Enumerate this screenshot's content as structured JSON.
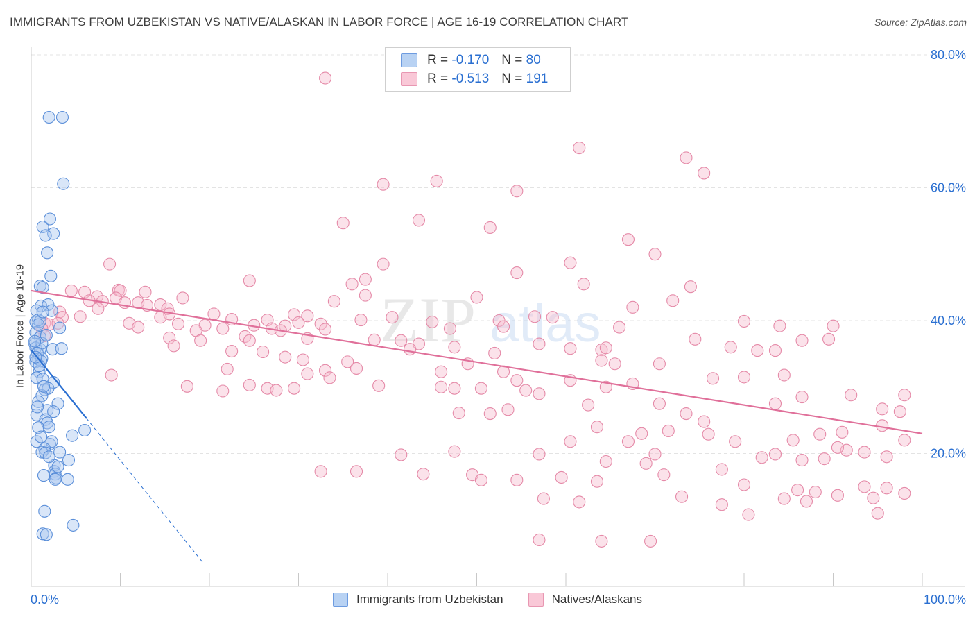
{
  "title": "IMMIGRANTS FROM UZBEKISTAN VS NATIVE/ALASKAN IN LABOR FORCE | AGE 16-19 CORRELATION CHART",
  "source": "Source: ZipAtlas.com",
  "watermark": {
    "zip": "ZIP",
    "atlas": "atlas"
  },
  "legend": {
    "r_label": "R =",
    "n_label": "N =",
    "series": [
      {
        "r": "-0.170",
        "n": "80"
      },
      {
        "r": "-0.513",
        "n": "191"
      }
    ]
  },
  "chart_data": {
    "type": "scatter",
    "title": "IMMIGRANTS FROM UZBEKISTAN VS NATIVE/ALASKAN IN LABOR FORCE | AGE 16-19 CORRELATION CHART",
    "xlabel": "",
    "ylabel": "In Labor Force | Age 16-19",
    "xlim": [
      0,
      100
    ],
    "ylim": [
      0,
      80
    ],
    "x_tick_labels": [
      "0.0%",
      "100.0%"
    ],
    "y_ticks": [
      20,
      40,
      60,
      80
    ],
    "y_tick_labels": [
      "20.0%",
      "40.0%",
      "60.0%",
      "80.0%"
    ],
    "grid": true,
    "colors": {
      "blue_fill": "#aac8f0",
      "blue_stroke": "#5b8fd9",
      "blue_line": "#2a6fd1",
      "pink_fill": "#f7bfd0",
      "pink_stroke": "#e58aa8",
      "pink_line": "#e0709a",
      "axis_label": "#2a6fd1",
      "grid": "#e3e3e3"
    },
    "series": [
      {
        "name": "Immigrants from Uzbekistan",
        "trend": {
          "x0": 0,
          "y0": 35.6,
          "x1": 6.2,
          "y1": 25.3,
          "dash_x1": 19.4
        },
        "points": [
          [
            2.0,
            70.6
          ],
          [
            3.5,
            70.6
          ],
          [
            3.6,
            60.6
          ],
          [
            1.3,
            54.1
          ],
          [
            2.1,
            55.3
          ],
          [
            2.5,
            53.1
          ],
          [
            1.6,
            52.8
          ],
          [
            1.8,
            50.2
          ],
          [
            2.2,
            46.7
          ],
          [
            1.0,
            45.2
          ],
          [
            1.3,
            45.0
          ],
          [
            1.1,
            42.2
          ],
          [
            1.9,
            42.4
          ],
          [
            0.6,
            41.5
          ],
          [
            2.3,
            41.5
          ],
          [
            0.5,
            39.8
          ],
          [
            1.0,
            39.9
          ],
          [
            0.8,
            40.1
          ],
          [
            3.2,
            38.9
          ],
          [
            0.5,
            38.2
          ],
          [
            1.0,
            37.5
          ],
          [
            0.4,
            36.5
          ],
          [
            0.5,
            35.9
          ],
          [
            1.0,
            35.7
          ],
          [
            1.2,
            36.6
          ],
          [
            2.4,
            35.7
          ],
          [
            3.4,
            35.8
          ],
          [
            0.7,
            35.1
          ],
          [
            0.8,
            34.2
          ],
          [
            1.2,
            34.3
          ],
          [
            0.5,
            33.8
          ],
          [
            1.1,
            33.9
          ],
          [
            0.9,
            32.3
          ],
          [
            0.6,
            31.4
          ],
          [
            1.3,
            31.2
          ],
          [
            2.5,
            30.7
          ],
          [
            1.5,
            29.6
          ],
          [
            1.9,
            29.8
          ],
          [
            1.2,
            28.7
          ],
          [
            0.8,
            27.8
          ],
          [
            3.0,
            27.5
          ],
          [
            1.8,
            26.5
          ],
          [
            2.5,
            26.3
          ],
          [
            0.6,
            25.8
          ],
          [
            1.6,
            25.1
          ],
          [
            1.8,
            24.6
          ],
          [
            0.8,
            23.9
          ],
          [
            6.0,
            23.5
          ],
          [
            4.6,
            22.7
          ],
          [
            0.6,
            21.8
          ],
          [
            2.1,
            21.4
          ],
          [
            2.3,
            21.8
          ],
          [
            1.5,
            20.7
          ],
          [
            1.2,
            20.2
          ],
          [
            1.6,
            20.1
          ],
          [
            3.2,
            20.2
          ],
          [
            4.2,
            19.0
          ],
          [
            2.6,
            18.2
          ],
          [
            2.6,
            17.3
          ],
          [
            2.7,
            16.9
          ],
          [
            1.4,
            16.7
          ],
          [
            2.8,
            16.3
          ],
          [
            2.7,
            16.1
          ],
          [
            4.1,
            16.1
          ],
          [
            1.5,
            11.3
          ],
          [
            1.3,
            7.9
          ],
          [
            1.7,
            7.8
          ],
          [
            4.7,
            9.2
          ],
          [
            0.4,
            36.9
          ],
          [
            0.9,
            33.2
          ],
          [
            1.4,
            30.1
          ],
          [
            0.7,
            27.0
          ],
          [
            2.0,
            24.0
          ],
          [
            1.1,
            22.5
          ],
          [
            2.0,
            19.5
          ],
          [
            3.0,
            18.0
          ],
          [
            0.5,
            34.5
          ],
          [
            1.7,
            37.8
          ],
          [
            0.8,
            39.4
          ],
          [
            1.3,
            41.3
          ]
        ]
      },
      {
        "name": "Natives/Alaskans",
        "trend": {
          "x0": 0,
          "y0": 44.5,
          "x1": 100,
          "y1": 23.0
        },
        "points": [
          [
            33.0,
            76.5
          ],
          [
            61.5,
            66.0
          ],
          [
            73.5,
            64.5
          ],
          [
            75.5,
            62.2
          ],
          [
            39.5,
            60.5
          ],
          [
            45.5,
            61.0
          ],
          [
            54.5,
            59.5
          ],
          [
            35.0,
            54.7
          ],
          [
            43.5,
            55.1
          ],
          [
            51.5,
            54.0
          ],
          [
            67.0,
            52.2
          ],
          [
            70.0,
            50.0
          ],
          [
            8.8,
            48.5
          ],
          [
            39.5,
            48.5
          ],
          [
            60.5,
            48.7
          ],
          [
            54.5,
            47.2
          ],
          [
            37.5,
            46.2
          ],
          [
            24.5,
            46.0
          ],
          [
            36.0,
            45.5
          ],
          [
            62.0,
            45.5
          ],
          [
            74.0,
            45.1
          ],
          [
            4.5,
            44.5
          ],
          [
            6.0,
            44.3
          ],
          [
            9.8,
            44.6
          ],
          [
            10.0,
            44.5
          ],
          [
            12.8,
            44.3
          ],
          [
            7.4,
            43.6
          ],
          [
            6.5,
            43.0
          ],
          [
            9.5,
            43.4
          ],
          [
            17.0,
            43.4
          ],
          [
            8.0,
            42.9
          ],
          [
            10.5,
            42.7
          ],
          [
            12.0,
            42.7
          ],
          [
            13.0,
            42.3
          ],
          [
            14.5,
            42.4
          ],
          [
            15.3,
            41.8
          ],
          [
            7.5,
            41.8
          ],
          [
            3.2,
            41.3
          ],
          [
            15.5,
            41.0
          ],
          [
            34.0,
            42.9
          ],
          [
            37.5,
            43.8
          ],
          [
            50.0,
            43.5
          ],
          [
            67.5,
            42.0
          ],
          [
            72.0,
            43.0
          ],
          [
            20.5,
            41.0
          ],
          [
            29.5,
            40.9
          ],
          [
            31.0,
            40.7
          ],
          [
            3.5,
            40.5
          ],
          [
            5.5,
            40.6
          ],
          [
            14.5,
            40.5
          ],
          [
            22.5,
            40.2
          ],
          [
            26.5,
            40.1
          ],
          [
            37.0,
            40.1
          ],
          [
            40.5,
            40.5
          ],
          [
            52.5,
            40.0
          ],
          [
            56.5,
            40.6
          ],
          [
            58.5,
            40.5
          ],
          [
            1.5,
            39.6
          ],
          [
            2.0,
            39.4
          ],
          [
            3.0,
            39.6
          ],
          [
            11.0,
            39.6
          ],
          [
            12.0,
            39.0
          ],
          [
            16.5,
            39.5
          ],
          [
            19.5,
            39.3
          ],
          [
            25.0,
            39.3
          ],
          [
            28.5,
            39.2
          ],
          [
            30.0,
            39.7
          ],
          [
            32.5,
            39.5
          ],
          [
            45.0,
            39.8
          ],
          [
            80.0,
            39.9
          ],
          [
            84.0,
            39.2
          ],
          [
            90.0,
            39.2
          ],
          [
            1.2,
            38.8
          ],
          [
            18.5,
            38.5
          ],
          [
            21.5,
            38.8
          ],
          [
            27.0,
            38.8
          ],
          [
            28.0,
            38.5
          ],
          [
            33.0,
            38.7
          ],
          [
            47.0,
            38.8
          ],
          [
            53.0,
            39.1
          ],
          [
            66.0,
            39.0
          ],
          [
            1.5,
            37.7
          ],
          [
            15.5,
            37.4
          ],
          [
            19.0,
            37.0
          ],
          [
            24.0,
            37.6
          ],
          [
            31.0,
            37.3
          ],
          [
            38.5,
            37.1
          ],
          [
            41.5,
            37.0
          ],
          [
            74.5,
            37.2
          ],
          [
            86.5,
            37.0
          ],
          [
            89.5,
            37.2
          ],
          [
            16.0,
            36.2
          ],
          [
            24.5,
            37.0
          ],
          [
            43.5,
            36.5
          ],
          [
            47.5,
            36.0
          ],
          [
            57.0,
            36.5
          ],
          [
            60.5,
            35.8
          ],
          [
            78.5,
            36.0
          ],
          [
            81.5,
            35.5
          ],
          [
            83.5,
            35.5
          ],
          [
            22.5,
            35.4
          ],
          [
            26.0,
            35.3
          ],
          [
            28.5,
            34.5
          ],
          [
            42.5,
            35.7
          ],
          [
            52.0,
            35.1
          ],
          [
            64.0,
            35.6
          ],
          [
            64.5,
            35.9
          ],
          [
            30.5,
            34.1
          ],
          [
            35.5,
            33.8
          ],
          [
            49.0,
            33.5
          ],
          [
            64.0,
            34.0
          ],
          [
            70.5,
            33.5
          ],
          [
            22.0,
            32.7
          ],
          [
            33.0,
            32.5
          ],
          [
            36.5,
            32.8
          ],
          [
            46.0,
            32.3
          ],
          [
            53.0,
            32.3
          ],
          [
            65.5,
            33.5
          ],
          [
            9.0,
            31.8
          ],
          [
            31.0,
            32.0
          ],
          [
            33.5,
            31.4
          ],
          [
            54.5,
            31.0
          ],
          [
            60.5,
            31.0
          ],
          [
            24.5,
            30.3
          ],
          [
            39.0,
            30.2
          ],
          [
            46.0,
            30.0
          ],
          [
            47.5,
            29.8
          ],
          [
            50.5,
            29.8
          ],
          [
            57.0,
            29.0
          ],
          [
            64.5,
            30.0
          ],
          [
            67.5,
            30.5
          ],
          [
            76.5,
            31.3
          ],
          [
            80.0,
            31.5
          ],
          [
            84.5,
            31.8
          ],
          [
            17.5,
            30.1
          ],
          [
            21.5,
            29.4
          ],
          [
            26.5,
            29.8
          ],
          [
            27.5,
            29.5
          ],
          [
            29.5,
            29.8
          ],
          [
            55.5,
            29.5
          ],
          [
            92.0,
            28.8
          ],
          [
            98.0,
            28.8
          ],
          [
            83.5,
            27.5
          ],
          [
            86.5,
            28.5
          ],
          [
            70.5,
            27.5
          ],
          [
            62.5,
            27.3
          ],
          [
            73.5,
            26.0
          ],
          [
            48.0,
            26.1
          ],
          [
            51.5,
            26.0
          ],
          [
            53.5,
            26.6
          ],
          [
            95.5,
            26.7
          ],
          [
            97.5,
            26.3
          ],
          [
            75.5,
            24.8
          ],
          [
            95.5,
            24.2
          ],
          [
            63.5,
            24.0
          ],
          [
            68.5,
            23.0
          ],
          [
            71.5,
            23.4
          ],
          [
            76.0,
            22.9
          ],
          [
            91.0,
            23.2
          ],
          [
            88.5,
            22.9
          ],
          [
            98.0,
            22.0
          ],
          [
            60.5,
            21.8
          ],
          [
            67.0,
            21.8
          ],
          [
            79.0,
            21.8
          ],
          [
            85.5,
            22.0
          ],
          [
            91.5,
            20.5
          ],
          [
            93.5,
            20.2
          ],
          [
            96.0,
            19.5
          ],
          [
            47.5,
            20.3
          ],
          [
            41.5,
            19.8
          ],
          [
            57.0,
            19.9
          ],
          [
            70.0,
            19.9
          ],
          [
            82.0,
            19.4
          ],
          [
            83.5,
            19.9
          ],
          [
            86.5,
            19.0
          ],
          [
            89.0,
            19.2
          ],
          [
            90.5,
            20.9
          ],
          [
            64.5,
            18.8
          ],
          [
            69.0,
            18.5
          ],
          [
            77.5,
            17.6
          ],
          [
            32.5,
            17.3
          ],
          [
            36.5,
            17.3
          ],
          [
            44.0,
            16.9
          ],
          [
            49.5,
            16.8
          ],
          [
            50.5,
            16.0
          ],
          [
            54.5,
            16.0
          ],
          [
            59.5,
            16.4
          ],
          [
            63.5,
            15.8
          ],
          [
            71.0,
            16.8
          ],
          [
            80.0,
            15.3
          ],
          [
            86.0,
            14.5
          ],
          [
            88.0,
            14.2
          ],
          [
            90.5,
            13.7
          ],
          [
            93.5,
            15.0
          ],
          [
            94.5,
            13.3
          ],
          [
            96.0,
            14.8
          ],
          [
            98.0,
            14.0
          ],
          [
            57.5,
            13.2
          ],
          [
            73.0,
            13.5
          ],
          [
            84.5,
            13.2
          ],
          [
            87.0,
            12.8
          ],
          [
            61.5,
            12.7
          ],
          [
            77.5,
            12.3
          ],
          [
            80.5,
            10.8
          ],
          [
            95.0,
            11.0
          ],
          [
            64.0,
            6.8
          ],
          [
            69.5,
            6.8
          ],
          [
            57.0,
            7.0
          ]
        ]
      }
    ]
  }
}
